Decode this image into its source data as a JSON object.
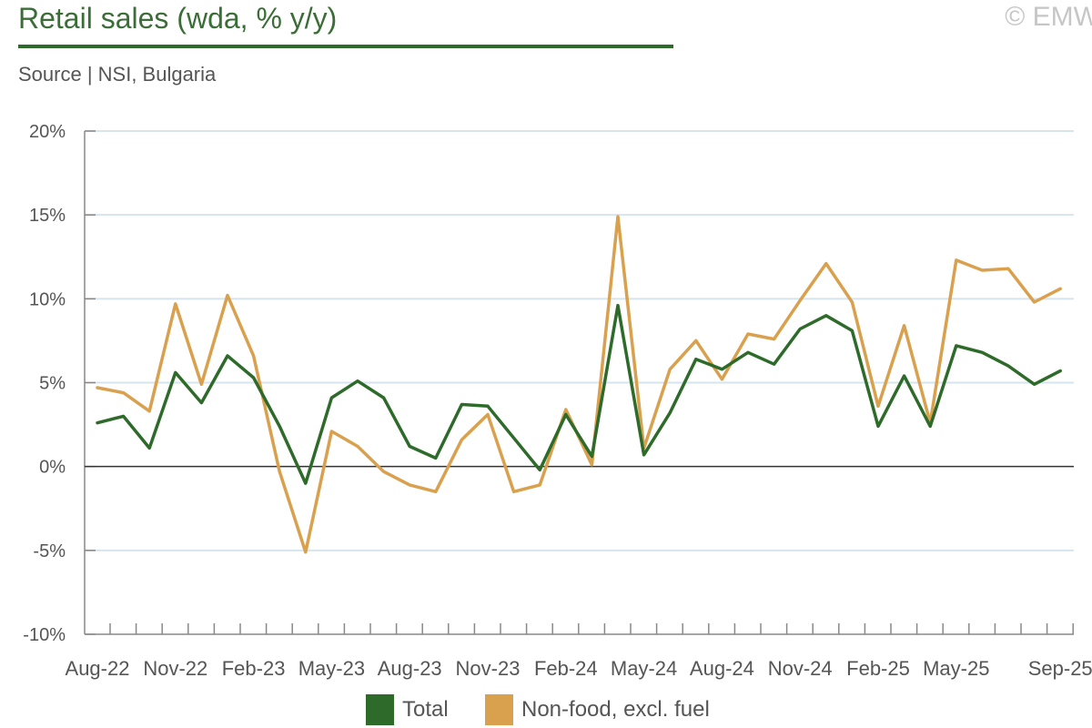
{
  "header": {
    "title": "Retail sales (wda, % y/y)",
    "subtitle": "Source | NSI, Bulgaria",
    "copyright": "© EMW"
  },
  "colors": {
    "total": "#2e6b2a",
    "nonfood": "#d9a04e",
    "grid": "#d6e4ee",
    "axis": "#888888",
    "zero": "#333333"
  },
  "chart_data": {
    "type": "line",
    "title": "Retail sales (wda, % y/y)",
    "xlabel": "",
    "ylabel": "",
    "ylim": [
      -10,
      20
    ],
    "yticks": [
      -10,
      -5,
      0,
      5,
      10,
      15,
      20
    ],
    "ytick_labels": [
      "-10%",
      "-5%",
      "0%",
      "5%",
      "10%",
      "15%",
      "20%"
    ],
    "grid": true,
    "legend_position": "bottom",
    "x": [
      "Aug-22",
      "Sep-22",
      "Oct-22",
      "Nov-22",
      "Dec-22",
      "Jan-23",
      "Feb-23",
      "Mar-23",
      "Apr-23",
      "May-23",
      "Jun-23",
      "Jul-23",
      "Aug-23",
      "Sep-23",
      "Oct-23",
      "Nov-23",
      "Dec-23",
      "Jan-24",
      "Feb-24",
      "Mar-24",
      "Apr-24",
      "May-24",
      "Jun-24",
      "Jul-24",
      "Aug-24",
      "Sep-24",
      "Oct-24",
      "Nov-24",
      "Dec-24",
      "Jan-25",
      "Feb-25",
      "Mar-25",
      "Apr-25",
      "May-25",
      "Jun-25",
      "Jul-25",
      "Aug-25",
      "Sep-25"
    ],
    "xtick_labels": [
      "Aug-22",
      "Nov-22",
      "Feb-23",
      "May-23",
      "Aug-23",
      "Nov-23",
      "Feb-24",
      "May-24",
      "Aug-24",
      "Nov-24",
      "Feb-25",
      "May-25",
      "Sep-25"
    ],
    "series": [
      {
        "name": "Total",
        "values": [
          2.6,
          3.0,
          1.1,
          5.6,
          3.8,
          6.6,
          5.3,
          2.4,
          -1.0,
          4.1,
          5.1,
          4.1,
          1.2,
          0.5,
          3.7,
          3.6,
          1.7,
          -0.2,
          3.1,
          0.6,
          9.6,
          0.7,
          3.2,
          6.4,
          5.8,
          6.8,
          6.1,
          8.2,
          9.0,
          8.1,
          2.4,
          5.4,
          2.4,
          7.2,
          6.8,
          6.0,
          4.9,
          5.7
        ]
      },
      {
        "name": "Non-food, excl. fuel",
        "values": [
          4.7,
          4.4,
          3.3,
          9.7,
          4.9,
          10.2,
          6.6,
          -0.3,
          -5.1,
          2.1,
          1.2,
          -0.3,
          -1.1,
          -1.5,
          1.6,
          3.1,
          -1.5,
          -1.1,
          3.4,
          0.1,
          14.9,
          1.1,
          5.8,
          7.5,
          5.2,
          7.9,
          7.6,
          9.9,
          12.1,
          9.8,
          3.6,
          8.4,
          2.6,
          12.3,
          11.7,
          11.8,
          9.8,
          10.6
        ]
      }
    ]
  }
}
